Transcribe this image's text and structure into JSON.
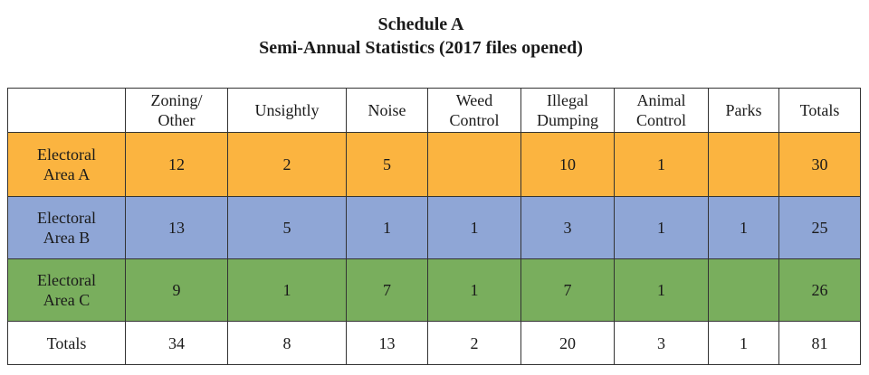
{
  "title": {
    "line1": "Schedule A",
    "line2": "Semi-Annual Statistics (2017 files opened)"
  },
  "table": {
    "corner": "",
    "columns": [
      "Zoning/\nOther",
      "Unsightly",
      "Noise",
      "Weed\nControl",
      "Illegal\nDumping",
      "Animal\nControl",
      "Parks",
      "Totals"
    ],
    "rows": [
      {
        "label": "Electoral\nArea A",
        "color": "#fbb440",
        "cells": [
          "12",
          "2",
          "5",
          "",
          "10",
          "1",
          "",
          "30"
        ]
      },
      {
        "label": "Electoral\nArea B",
        "color": "#8fa6d6",
        "cells": [
          "13",
          "5",
          "1",
          "1",
          "3",
          "1",
          "1",
          "25"
        ]
      },
      {
        "label": "Electoral\nArea C",
        "color": "#79ae5d",
        "cells": [
          "9",
          "1",
          "7",
          "1",
          "7",
          "1",
          "",
          "26"
        ]
      }
    ],
    "totals": {
      "label": "Totals",
      "cells": [
        "34",
        "8",
        "13",
        "2",
        "20",
        "3",
        "1",
        "81"
      ]
    }
  }
}
